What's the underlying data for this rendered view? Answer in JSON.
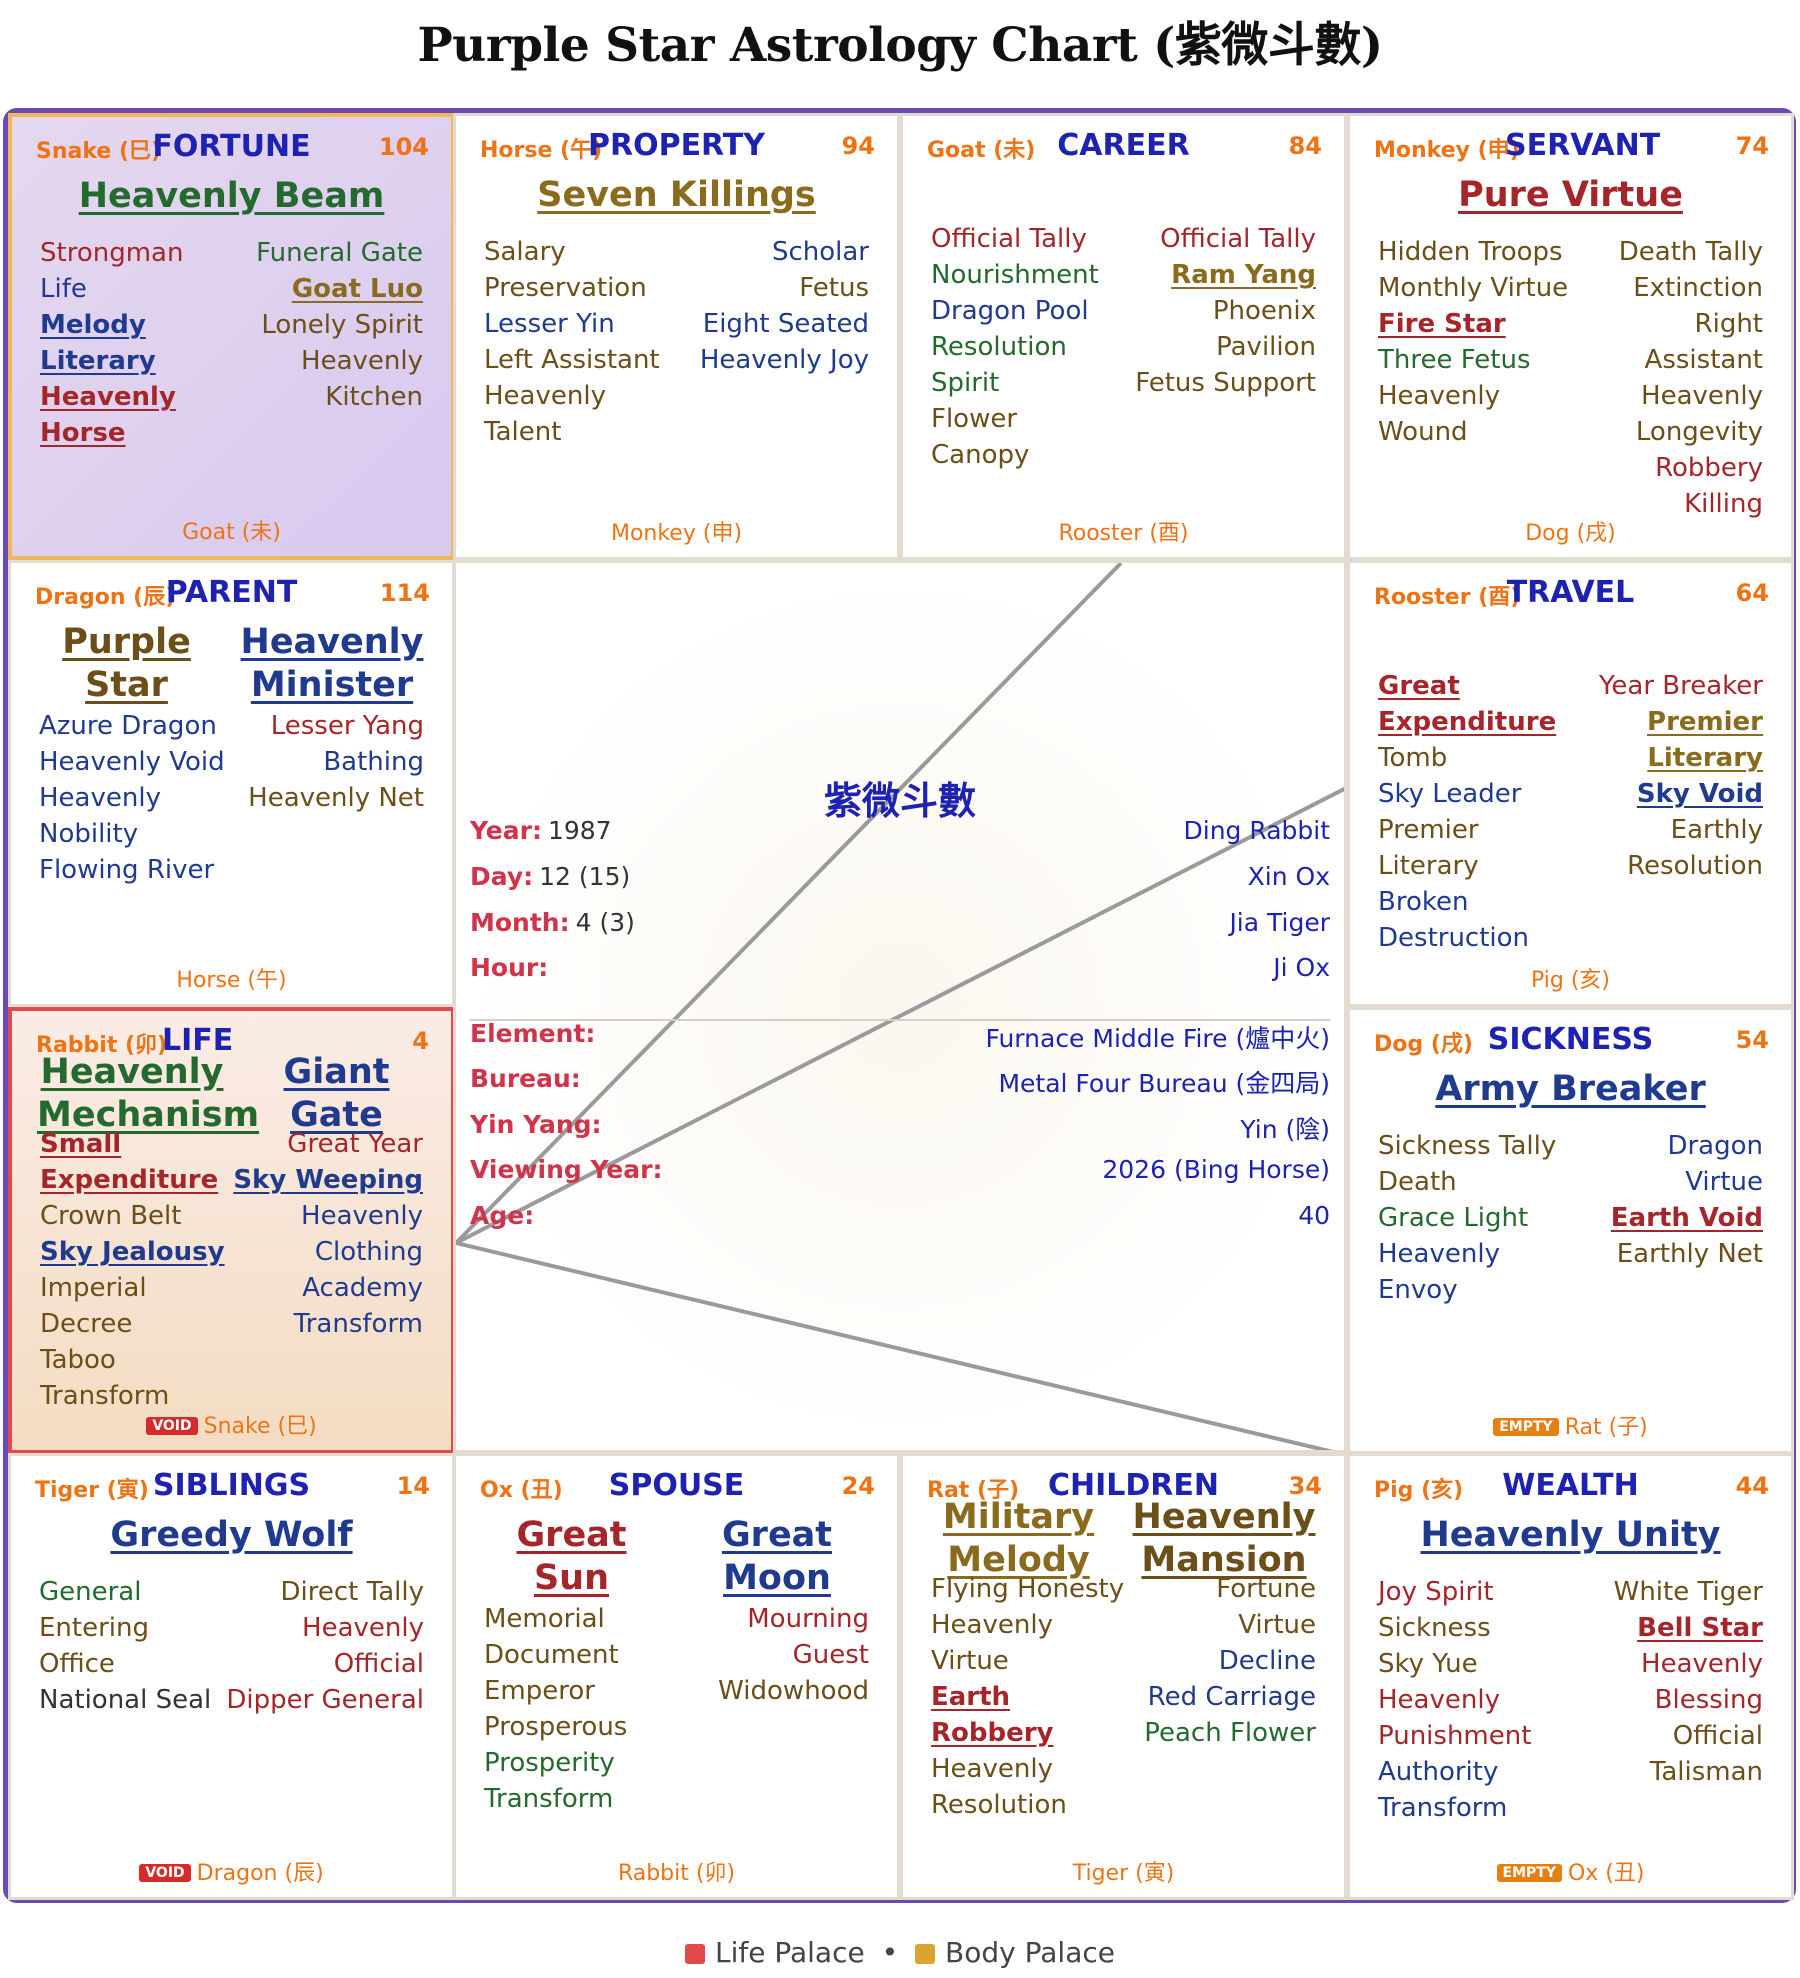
{
  "title": "Purple Star Astrology Chart (紫微斗數)",
  "palaces": {
    "fortune": {
      "branch": "Snake (巳)",
      "name": "FORTUNE",
      "number": "104",
      "major": [
        {
          "text": "Heavenly Beam",
          "color": "#246a2f"
        }
      ],
      "left": [
        {
          "text": "Strongman",
          "color": "#a4262a"
        },
        {
          "text": "Life",
          "color": "#203a8e"
        },
        {
          "text": "Melody Literary",
          "color": "#203a8e",
          "u": true
        },
        {
          "text": "Heavenly Horse",
          "color": "#a4262a",
          "u": true
        }
      ],
      "right": [
        {
          "text": "Funeral Gate",
          "color": "#246a2f"
        },
        {
          "text": "Goat Luo",
          "color": "#8a6a1c",
          "u": true
        },
        {
          "text": "Lonely Spirit",
          "color": "#6b4e18"
        },
        {
          "text": "Heavenly Kitchen",
          "color": "#6b4e18"
        }
      ],
      "bottom": "Goat (未)",
      "badge": ""
    },
    "property": {
      "branch": "Horse (午)",
      "name": "PROPERTY",
      "number": "94",
      "major": [
        {
          "text": "Seven Killings",
          "color": "#8a6a1c"
        }
      ],
      "left": [
        {
          "text": "Salary Preservation",
          "color": "#6b4e18"
        },
        {
          "text": "Lesser Yin",
          "color": "#203a8e"
        },
        {
          "text": "Left Assistant",
          "color": "#6b4e18"
        },
        {
          "text": "Heavenly Talent",
          "color": "#6b4e18"
        }
      ],
      "right": [
        {
          "text": "Scholar",
          "color": "#203a8e"
        },
        {
          "text": "Fetus",
          "color": "#6b4e18"
        },
        {
          "text": "Eight Seated",
          "color": "#203a8e"
        },
        {
          "text": "Heavenly Joy",
          "color": "#203a8e"
        }
      ],
      "bottom": "Monkey (申)",
      "badge": ""
    },
    "career": {
      "branch": "Goat (未)",
      "name": "CAREER",
      "number": "84",
      "major": [],
      "left": [
        {
          "text": "Official Tally",
          "color": "#a4262a"
        },
        {
          "text": "Nourishment",
          "color": "#246a2f"
        },
        {
          "text": "Dragon Pool",
          "color": "#203a8e"
        },
        {
          "text": "Resolution Spirit",
          "color": "#246a2f"
        },
        {
          "text": "Flower Canopy",
          "color": "#6b4e18"
        }
      ],
      "right": [
        {
          "text": "Official Tally",
          "color": "#a4262a"
        },
        {
          "text": "Ram Yang",
          "color": "#8a6a1c",
          "u": true
        },
        {
          "text": "Phoenix Pavilion",
          "color": "#6b4e18"
        },
        {
          "text": "Fetus Support",
          "color": "#6b4e18"
        }
      ],
      "bottom": "Rooster (酉)",
      "badge": ""
    },
    "servant": {
      "branch": "Monkey (申)",
      "name": "SERVANT",
      "number": "74",
      "major": [
        {
          "text": "Pure Virtue",
          "color": "#a4262a"
        }
      ],
      "left": [
        {
          "text": "Hidden Troops",
          "color": "#6b4e18"
        },
        {
          "text": "Monthly Virtue",
          "color": "#6b4e18"
        },
        {
          "text": "Fire Star",
          "color": "#a4262a",
          "u": true
        },
        {
          "text": "Three Fetus",
          "color": "#246a2f"
        },
        {
          "text": "Heavenly Wound",
          "color": "#6b4e18"
        }
      ],
      "right": [
        {
          "text": "Death Tally",
          "color": "#6b4e18"
        },
        {
          "text": "Extinction",
          "color": "#6b4e18"
        },
        {
          "text": "Right Assistant",
          "color": "#6b4e18"
        },
        {
          "text": "Heavenly Longevity",
          "color": "#6b4e18"
        },
        {
          "text": "Robbery Killing",
          "color": "#a4262a"
        }
      ],
      "bottom": "Dog (戌)",
      "badge": ""
    },
    "parent": {
      "branch": "Dragon (辰)",
      "name": "PARENT",
      "number": "114",
      "major": [
        {
          "text": "Purple Star",
          "color": "#6b4e18"
        },
        {
          "text": "Heavenly Minister",
          "color": "#203a8e"
        }
      ],
      "left": [
        {
          "text": "Azure Dragon",
          "color": "#203a8e"
        },
        {
          "text": "Heavenly Void",
          "color": "#203a8e"
        },
        {
          "text": "Heavenly Nobility",
          "color": "#203a8e"
        },
        {
          "text": "Flowing River",
          "color": "#203a8e"
        }
      ],
      "right": [
        {
          "text": "Lesser Yang",
          "color": "#a4262a"
        },
        {
          "text": "Bathing",
          "color": "#203a8e"
        },
        {
          "text": "Heavenly Net",
          "color": "#6b4e18"
        }
      ],
      "bottom": "Horse (午)",
      "badge": ""
    },
    "travel": {
      "branch": "Rooster (酉)",
      "name": "TRAVEL",
      "number": "64",
      "major": [],
      "left": [
        {
          "text": "Great Expenditure",
          "color": "#a4262a",
          "u": true
        },
        {
          "text": "Tomb",
          "color": "#6b4e18"
        },
        {
          "text": "Sky Leader",
          "color": "#203a8e"
        },
        {
          "text": "Premier Literary",
          "color": "#6b4e18"
        },
        {
          "text": "Broken Destruction",
          "color": "#203a8e"
        }
      ],
      "right": [
        {
          "text": "Year Breaker",
          "color": "#a4262a"
        },
        {
          "text": "Premier Literary",
          "color": "#8a6a1c",
          "u": true
        },
        {
          "text": "Sky Void",
          "color": "#203a8e",
          "u": true
        },
        {
          "text": "Earthly Resolution",
          "color": "#6b4e18"
        }
      ],
      "bottom": "Pig (亥)",
      "badge": ""
    },
    "life": {
      "branch": "Rabbit (卯)",
      "name": "LIFE",
      "number": "4",
      "major": [
        {
          "text": "Heavenly Mechanism",
          "color": "#246a2f"
        },
        {
          "text": "Giant Gate",
          "color": "#203a8e"
        }
      ],
      "left": [
        {
          "text": "Small Expenditure",
          "color": "#a4262a",
          "u": true
        },
        {
          "text": "Crown Belt",
          "color": "#6b4e18"
        },
        {
          "text": "Sky Jealousy",
          "color": "#203a8e",
          "u": true
        },
        {
          "text": "Imperial Decree",
          "color": "#6b4e18"
        },
        {
          "text": "Taboo Transform",
          "color": "#6b4e18"
        }
      ],
      "right": [
        {
          "text": "Great Year",
          "color": "#a4262a"
        },
        {
          "text": "Sky Weeping",
          "color": "#203a8e",
          "u": true
        },
        {
          "text": "Heavenly Clothing",
          "color": "#203a8e"
        },
        {
          "text": "Academy Transform",
          "color": "#203a8e"
        }
      ],
      "bottom": "Snake (巳)",
      "badge": "VOID"
    },
    "sickness": {
      "branch": "Dog (戌)",
      "name": "SICKNESS",
      "number": "54",
      "major": [
        {
          "text": "Army Breaker",
          "color": "#203a8e"
        }
      ],
      "left": [
        {
          "text": "Sickness Tally",
          "color": "#6b4e18"
        },
        {
          "text": "Death",
          "color": "#6b4e18"
        },
        {
          "text": "Grace Light",
          "color": "#246a2f"
        },
        {
          "text": "Heavenly Envoy",
          "color": "#203a8e"
        }
      ],
      "right": [
        {
          "text": "Dragon Virtue",
          "color": "#203a8e"
        },
        {
          "text": "Earth Void",
          "color": "#a4262a",
          "u": true
        },
        {
          "text": "Earthly Net",
          "color": "#6b4e18"
        }
      ],
      "bottom": "Rat (子)",
      "badge": "EMPTY"
    },
    "siblings": {
      "branch": "Tiger (寅)",
      "name": "SIBLINGS",
      "number": "14",
      "major": [
        {
          "text": "Greedy Wolf",
          "color": "#203a8e"
        }
      ],
      "left": [
        {
          "text": "General",
          "color": "#246a2f"
        },
        {
          "text": "Entering Office",
          "color": "#6b4e18"
        },
        {
          "text": "National Seal",
          "color": "#333333"
        }
      ],
      "right": [
        {
          "text": "Direct Tally",
          "color": "#6b4e18"
        },
        {
          "text": "Heavenly Official",
          "color": "#a4262a"
        },
        {
          "text": "Dipper General",
          "color": "#a4262a"
        }
      ],
      "bottom": "Dragon (辰)",
      "badge": "VOID"
    },
    "spouse": {
      "branch": "Ox (丑)",
      "name": "SPOUSE",
      "number": "24",
      "major": [
        {
          "text": "Great Sun",
          "color": "#a4262a"
        },
        {
          "text": "Great Moon",
          "color": "#203a8e"
        }
      ],
      "left": [
        {
          "text": "Memorial Document",
          "color": "#6b4e18"
        },
        {
          "text": "Emperor Prosperous",
          "color": "#6b4e18"
        },
        {
          "text": "Prosperity Transform",
          "color": "#246a2f"
        }
      ],
      "right": [
        {
          "text": "Mourning Guest",
          "color": "#a4262a"
        },
        {
          "text": "Widowhood",
          "color": "#6b4e18"
        }
      ],
      "bottom": "Rabbit (卯)",
      "badge": ""
    },
    "children": {
      "branch": "Rat (子)",
      "name": "CHILDREN",
      "number": "34",
      "major": [
        {
          "text": "Military Melody",
          "color": "#8a6a1c"
        },
        {
          "text": "Heavenly Mansion",
          "color": "#6b4e18"
        }
      ],
      "left": [
        {
          "text": "Flying Honesty",
          "color": "#6b4e18"
        },
        {
          "text": "Heavenly Virtue",
          "color": "#6b4e18"
        },
        {
          "text": "Earth Robbery",
          "color": "#a4262a",
          "u": true
        },
        {
          "text": "Heavenly Resolution",
          "color": "#6b4e18"
        }
      ],
      "right": [
        {
          "text": "Fortune Virtue",
          "color": "#6b4e18"
        },
        {
          "text": "Decline",
          "color": "#203a8e"
        },
        {
          "text": "Red Carriage",
          "color": "#203a8e"
        },
        {
          "text": "Peach Flower",
          "color": "#246a2f"
        }
      ],
      "bottom": "Tiger (寅)",
      "badge": ""
    },
    "wealth": {
      "branch": "Pig (亥)",
      "name": "WEALTH",
      "number": "44",
      "major": [
        {
          "text": "Heavenly Unity",
          "color": "#203a8e"
        }
      ],
      "left": [
        {
          "text": "Joy Spirit",
          "color": "#a4262a"
        },
        {
          "text": "Sickness",
          "color": "#6b4e18"
        },
        {
          "text": "Sky Yue",
          "color": "#6b4e18"
        },
        {
          "text": "Heavenly Punishment",
          "color": "#a4262a"
        },
        {
          "text": "Authority Transform",
          "color": "#203a8e"
        }
      ],
      "right": [
        {
          "text": "White Tiger",
          "color": "#6b4e18"
        },
        {
          "text": "Bell Star",
          "color": "#a4262a",
          "u": true
        },
        {
          "text": "Heavenly Blessing",
          "color": "#a4262a"
        },
        {
          "text": "Official Talisman",
          "color": "#6b4e18"
        }
      ],
      "bottom": "Ox (丑)",
      "badge": "EMPTY"
    }
  },
  "center": {
    "title": "紫微斗數",
    "rows": [
      {
        "label": "Year:",
        "value_left": "1987",
        "value": "Ding Rabbit"
      },
      {
        "label": "Day:",
        "value_left": "12 (15)",
        "value": "Xin Ox"
      },
      {
        "label": "Month:",
        "value_left": "4 (3)",
        "value": "Jia Tiger"
      },
      {
        "label": "Hour:",
        "value_left": "",
        "value": "Ji Ox"
      },
      {
        "label": "Element:",
        "value_left": "",
        "value": "Furnace Middle Fire (爐中火)"
      },
      {
        "label": "Bureau:",
        "value_left": "",
        "value": "Metal Four Bureau (金四局)"
      },
      {
        "label": "Yin Yang:",
        "value_left": "",
        "value": "Yin (陰)"
      },
      {
        "label": "Viewing Year:",
        "value_left": "",
        "value": "2026 (Bing Horse)"
      },
      {
        "label": "Age:",
        "value_left": "",
        "value": "40"
      }
    ]
  },
  "legend": {
    "life_palace": "Life Palace",
    "separator": "•",
    "body_palace": "Body Palace",
    "life_color": "#e04a48",
    "body_color": "#d9a430"
  }
}
